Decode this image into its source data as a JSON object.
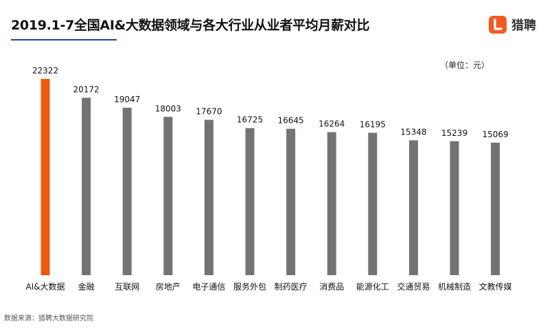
{
  "title": "2019.1-7全国AI&大数据领域与各大行业从业者平均月薪对比",
  "brand": {
    "name": "猎聘",
    "accent": "#f15a24"
  },
  "unit_note": "（单位：元）",
  "source": "数据来源：猎聘大数据研究院",
  "chart_data": {
    "type": "bar",
    "title": "2019.1-7全国AI&大数据领域与各大行业从业者平均月薪对比",
    "xlabel": "",
    "ylabel": "",
    "ylim": [
      0,
      22322
    ],
    "grid": false,
    "categories": [
      "AI&大数据",
      "金融",
      "互联网",
      "房地产",
      "电子通信",
      "服务外包",
      "制药医疗",
      "消费品",
      "能源化工",
      "交通贸易",
      "机械制造",
      "文教传媒"
    ],
    "values": [
      22322,
      20172,
      19047,
      18003,
      17670,
      16725,
      16645,
      16264,
      16195,
      15348,
      15239,
      15069
    ],
    "colors": {
      "highlight": "#ea5b0c",
      "default": "#747272"
    }
  }
}
